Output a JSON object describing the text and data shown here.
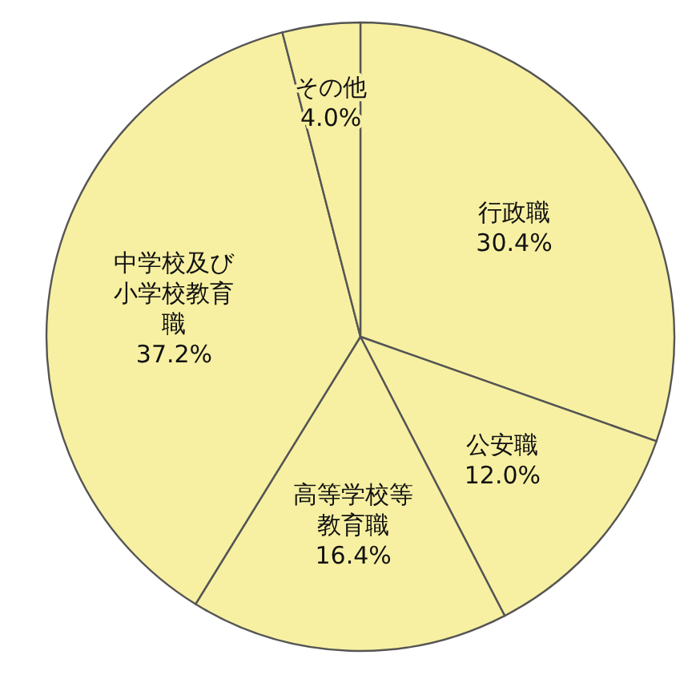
{
  "chart_data": {
    "type": "pie",
    "categories": [
      "行政職",
      "公安職",
      "高等学校等教育職",
      "中学校及び小学校教育職",
      "その他"
    ],
    "values": [
      30.4,
      12.0,
      16.4,
      37.2,
      4.0
    ],
    "colors": [
      "#f7f0a2",
      "#f7f0a2",
      "#f7f0a2",
      "#f7f0a2",
      "#f7f0a2"
    ],
    "value_labels": [
      "30.4%",
      "12.0%",
      "16.4%",
      "37.2%",
      "4.0%"
    ]
  }
}
